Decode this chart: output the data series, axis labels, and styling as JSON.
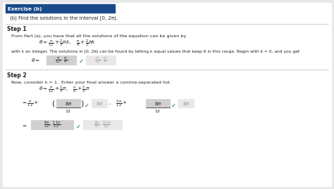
{
  "bg_color": "#e8e8e8",
  "header_bg": "#1a4a8a",
  "header_text": "Exercise (b)",
  "header_text_color": "#ffffff",
  "body_bg": "#f0f0f0",
  "panel_bg": "#ffffff",
  "title_line": "(b) Find the solutions in the interval [0, 2π).",
  "step1_label": "Step 1",
  "step1_line1": "From Part (a), you have that all the solutions of the equation can be given by",
  "step1_line2": "with k an integer. The solutions in [0, 2π) can be found by letting k equal values that keep θ in this range. Begin with k = 0, and you get",
  "step2_label": "Step 2",
  "step2_line1": "Now, consider k = 1.  Enter your final answer a comma-separated list.",
  "box_filled_color": "#d0d0d0",
  "box_outline_color": "#888888",
  "box_empty_color": "#e8e8e8",
  "check_color": "#007700",
  "text_color": "#222222",
  "dim_color": "#999999"
}
